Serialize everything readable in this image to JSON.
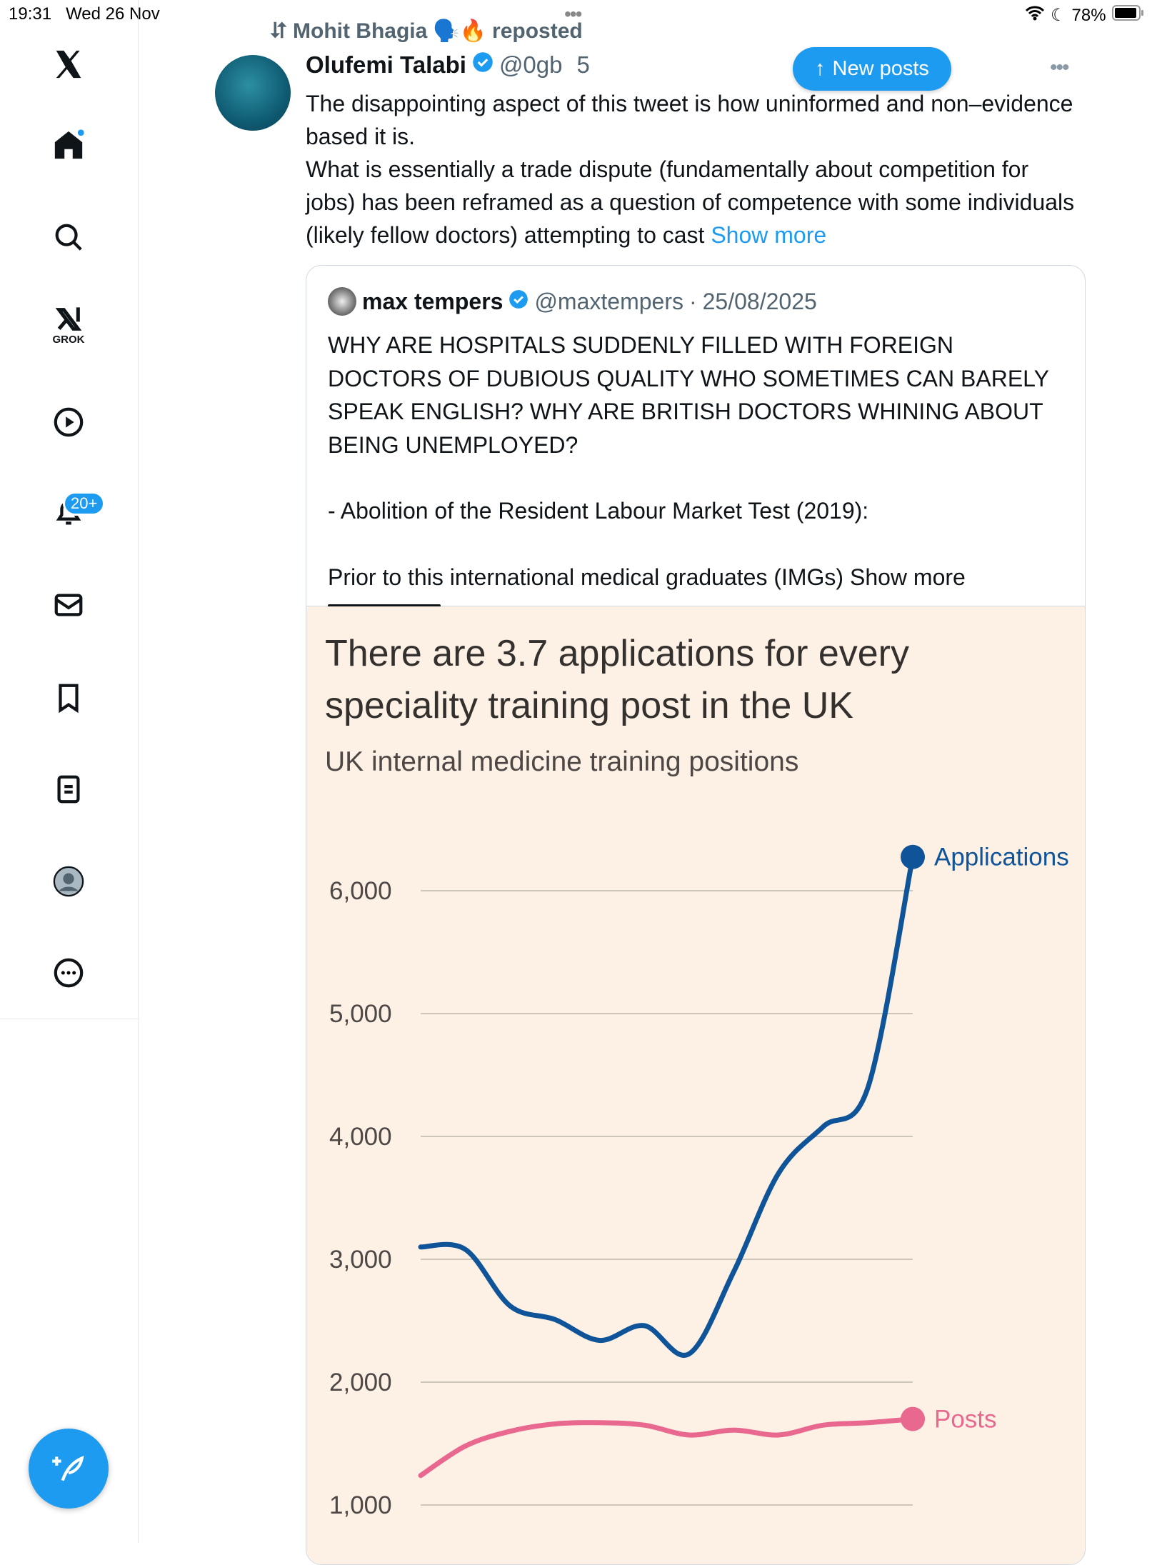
{
  "status": {
    "time": "19:31",
    "date": "Wed 26 Nov",
    "battery": "78%"
  },
  "sidebar": {
    "items": [
      "home",
      "search",
      "grok",
      "videos",
      "notifications",
      "messages",
      "bookmarks",
      "lists",
      "profile",
      "more"
    ],
    "grok_label": "GROK",
    "notification_badge": "20+"
  },
  "repost": {
    "user": "Mohit Bhagia",
    "emoji": "🗣️🔥",
    "label": "reposted"
  },
  "post": {
    "author": "Olufemi Talabi",
    "handle": "@0gb",
    "handle_tail": "5",
    "new_posts": "New posts",
    "text": "The disappointing aspect of this tweet is how uninformed and non–evidence based it is.",
    "text2": "What is essentially a trade dispute (fundamentally about competition for jobs) has been reframed as a question of competence with some individuals (likely fellow doctors) attempting to cast ",
    "show_more": "Show more"
  },
  "quote": {
    "author": "max tempers",
    "handle": "@maxtempers",
    "separator": "·",
    "date": "25/08/2025",
    "line1": "WHY ARE HOSPITALS SUDDENLY FILLED WITH FOREIGN DOCTORS OF DUBIOUS QUALITY WHO SOMETIMES CAN BARELY SPEAK ENGLISH? WHY ARE BRITISH DOCTORS WHINING ABOUT BEING UNEMPLOYED?",
    "line2": "- Abolition of the Resident Labour Market Test (2019):",
    "line3": "Prior to this international medical graduates (IMGs) ",
    "show_more": "Show more"
  },
  "colors": {
    "accent": "#1d9bf0",
    "applications": "#0f5499",
    "posts": "#e9688f",
    "chart_bg": "#fdf1e6"
  },
  "chart_data": {
    "type": "line",
    "title": "There are 3.7 applications for every speciality training post in the UK",
    "subtitle": "UK internal medicine training positions",
    "ylim": [
      1000,
      6300
    ],
    "yticks": [
      "1,000",
      "2,000",
      "3,000",
      "4,000",
      "5,000",
      "6,000"
    ],
    "ytick_values": [
      1000,
      2000,
      3000,
      4000,
      5000,
      6000
    ],
    "x": [
      0,
      1,
      2,
      3,
      4,
      5,
      6,
      7,
      8,
      9,
      10,
      11
    ],
    "grid": true,
    "series": [
      {
        "name": "Applications",
        "values": [
          3100,
          3080,
          2620,
          2510,
          2340,
          2460,
          2230,
          2900,
          3700,
          4080,
          4400,
          6275
        ]
      },
      {
        "name": "Posts",
        "values": [
          1240,
          1480,
          1600,
          1660,
          1670,
          1650,
          1570,
          1610,
          1570,
          1650,
          1670,
          1700
        ]
      }
    ]
  }
}
